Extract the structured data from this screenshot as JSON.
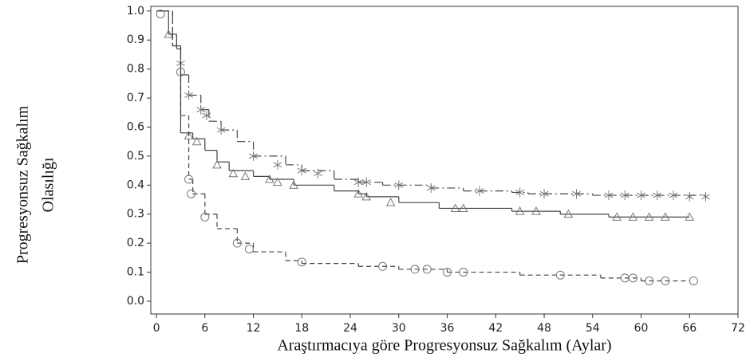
{
  "chart_data": {
    "type": "km-line",
    "xlabel": "Araştırmacıya göre Progresyonsuz Sağkalım (Aylar)",
    "ylabel": [
      "Progresyonsuz Sağkalım",
      "Olasılığı"
    ],
    "xlim": [
      -0.7,
      72
    ],
    "ylim": [
      -0.044,
      1.016
    ],
    "xticks": [
      0,
      6,
      12,
      18,
      24,
      30,
      36,
      42,
      48,
      54,
      60,
      66,
      72
    ],
    "yticks": [
      {
        "value": 0,
        "label": "0.0"
      },
      0.1,
      0.2,
      0.3,
      0.4,
      0.5,
      0.6,
      0.7,
      0.8,
      0.9,
      {
        "value": 1,
        "label": "1.0"
      }
    ],
    "series": [
      {
        "color": "#444444",
        "marker": "star",
        "dash": "10,4,2,4",
        "x": [
          0,
          2,
          3,
          4,
          5.5,
          6.5,
          8,
          10,
          12,
          16,
          18,
          22,
          25,
          28,
          34,
          38,
          44,
          46,
          54,
          68
        ],
        "values": [
          1.0,
          0.88,
          0.78,
          0.71,
          0.66,
          0.62,
          0.59,
          0.55,
          0.5,
          0.47,
          0.45,
          0.42,
          0.41,
          0.4,
          0.39,
          0.38,
          0.375,
          0.37,
          0.365,
          0.36
        ],
        "censor_x": [
          3,
          4,
          5.5,
          6.2,
          8,
          12,
          15,
          18,
          20,
          25,
          26,
          30,
          34,
          40,
          45,
          48,
          52,
          56,
          58,
          60,
          62,
          64,
          66,
          68
        ],
        "censor_values": [
          0.82,
          0.71,
          0.66,
          0.64,
          0.59,
          0.5,
          0.47,
          0.45,
          0.44,
          0.41,
          0.41,
          0.4,
          0.39,
          0.38,
          0.375,
          0.37,
          0.37,
          0.365,
          0.365,
          0.365,
          0.365,
          0.365,
          0.36,
          0.36
        ]
      },
      {
        "color": "#444444",
        "marker": "triangle",
        "dash": "none",
        "x": [
          0,
          1.5,
          2.5,
          3,
          4.5,
          6,
          7.5,
          9,
          12,
          14,
          17,
          22,
          25,
          26,
          30,
          35,
          44,
          50,
          56,
          66
        ],
        "values": [
          1.0,
          0.92,
          0.87,
          0.58,
          0.56,
          0.52,
          0.48,
          0.45,
          0.43,
          0.42,
          0.4,
          0.38,
          0.37,
          0.36,
          0.34,
          0.32,
          0.31,
          0.3,
          0.29,
          0.29
        ],
        "censor_x": [
          1.5,
          4,
          5,
          7.5,
          9.5,
          11,
          14,
          15,
          17,
          25,
          26,
          29,
          37,
          38,
          45,
          47,
          51,
          57,
          59,
          61,
          63,
          66
        ],
        "censor_values": [
          0.92,
          0.57,
          0.55,
          0.47,
          0.44,
          0.43,
          0.42,
          0.41,
          0.4,
          0.37,
          0.36,
          0.34,
          0.32,
          0.32,
          0.31,
          0.31,
          0.3,
          0.29,
          0.29,
          0.29,
          0.29,
          0.29
        ]
      },
      {
        "color": "#444444",
        "marker": "circle",
        "dash": "6,4",
        "x": [
          0,
          2,
          3,
          4,
          4.5,
          6,
          7.5,
          10,
          12,
          16,
          18,
          25,
          30,
          36,
          45,
          55,
          60,
          66
        ],
        "values": [
          1.0,
          0.88,
          0.64,
          0.42,
          0.37,
          0.3,
          0.25,
          0.2,
          0.17,
          0.14,
          0.13,
          0.12,
          0.11,
          0.1,
          0.09,
          0.08,
          0.07,
          0.07
        ],
        "censor_x": [
          0.5,
          3,
          4,
          4.3,
          6,
          10,
          11.5,
          18,
          28,
          32,
          33.5,
          36,
          38,
          50,
          58,
          59,
          61,
          63,
          66.5
        ],
        "censor_values": [
          0.99,
          0.79,
          0.42,
          0.37,
          0.29,
          0.2,
          0.18,
          0.135,
          0.12,
          0.11,
          0.11,
          0.1,
          0.1,
          0.09,
          0.08,
          0.08,
          0.07,
          0.07,
          0.07
        ]
      }
    ]
  }
}
